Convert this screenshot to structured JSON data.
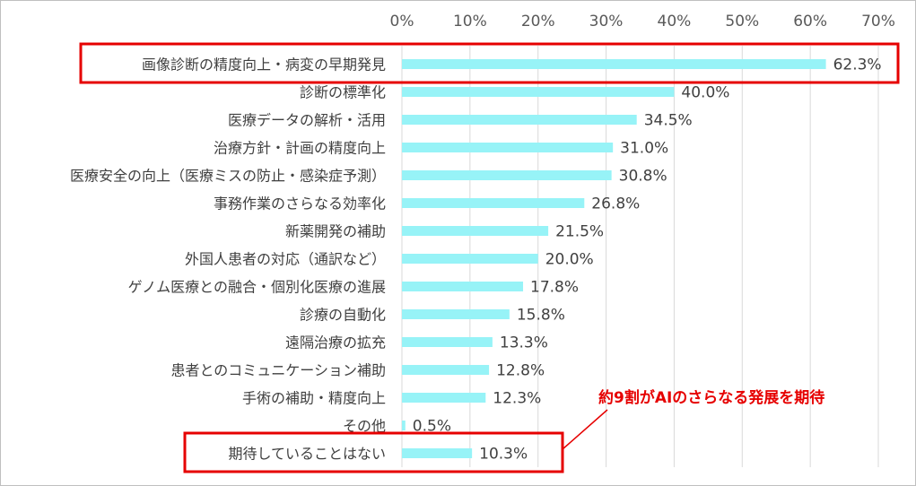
{
  "chart_data": {
    "type": "bar",
    "orientation": "horizontal",
    "categories": [
      "画像診断の精度向上・病変の早期発見",
      "診断の標準化",
      "医療データの解析・活用",
      "治療方針・計画の精度向上",
      "医療安全の向上（医療ミスの防止・感染症予測）",
      "事務作業のさらなる効率化",
      "新薬開発の補助",
      "外国人患者の対応（通訳など）",
      "ゲノム医療との融合・個別化医療の進展",
      "診療の自動化",
      "遠隔治療の拡充",
      "患者とのコミュニケーション補助",
      "手術の補助・精度向上",
      "その他",
      "期待していることはない"
    ],
    "values": [
      62.3,
      40.0,
      34.5,
      31.0,
      30.8,
      26.8,
      21.5,
      20.0,
      17.8,
      15.8,
      13.3,
      12.8,
      12.3,
      0.5,
      10.3
    ],
    "value_labels": [
      "62.3%",
      "40.0%",
      "34.5%",
      "31.0%",
      "30.8%",
      "26.8%",
      "21.5%",
      "20.0%",
      "17.8%",
      "15.8%",
      "13.3%",
      "12.8%",
      "12.3%",
      "0.5%",
      "10.3%"
    ],
    "xlim": [
      0,
      70
    ],
    "xticks": [
      0,
      10,
      20,
      30,
      40,
      50,
      60,
      70
    ],
    "xtick_labels": [
      "0%",
      "10%",
      "20%",
      "30%",
      "40%",
      "50%",
      "60%",
      "70%"
    ],
    "axis_position": "top",
    "grid": true,
    "bar_color": "#97f3f7",
    "highlight_color": "#e60000",
    "highlighted_categories": [
      0,
      14
    ],
    "annotation": "約9割がAIのさらなる発展を期待"
  }
}
